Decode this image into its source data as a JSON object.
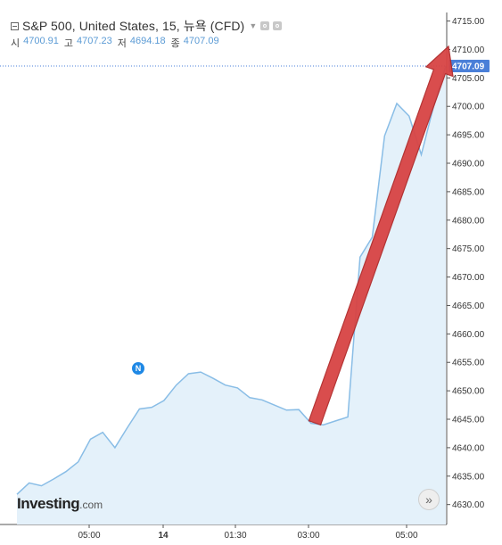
{
  "header": {
    "title": "S&P 500, United States, 15, 뉴욕 (CFD)",
    "ohlc": [
      {
        "label": "시",
        "value": "4700.91"
      },
      {
        "label": "고",
        "value": "4707.23"
      },
      {
        "label": "저",
        "value": "4694.18"
      },
      {
        "label": "종",
        "value": "4707.09"
      }
    ]
  },
  "chart_data": {
    "type": "area",
    "x_ticks": [
      "05:00",
      "14",
      "01:30",
      "03:00",
      "05:00"
    ],
    "y_ticks": [
      "4715.00",
      "4710.00",
      "4705.00",
      "4700.00",
      "4695.00",
      "4690.00",
      "4685.00",
      "4680.00",
      "4675.00",
      "4670.00",
      "4665.00",
      "4660.00",
      "4655.00",
      "4650.00",
      "4645.00",
      "4640.00",
      "4635.00",
      "4630.00"
    ],
    "ylim": [
      4626.5,
      4716.5
    ],
    "values": [
      4631.8,
      4633.8,
      4633.3,
      4634.5,
      4635.8,
      4637.5,
      4641.5,
      4642.7,
      4640.0,
      4643.5,
      4646.8,
      4647.1,
      4648.3,
      4651.0,
      4653.0,
      4653.3,
      4652.2,
      4651.0,
      4650.5,
      4648.8,
      4648.4,
      4647.5,
      4646.6,
      4646.7,
      4644.3,
      4644.0,
      4644.7,
      4645.4,
      4673.5,
      4677.0,
      4694.8,
      4700.5,
      4698.3,
      4691.5,
      4700.0,
      4707.09
    ],
    "last_value_label": "4707.09",
    "colors": {
      "line": "#89bde6",
      "fill": "#e4f1fa",
      "last_price": "#4a7fd8",
      "arrow": "#d84444",
      "arrow_stroke": "#b02a2a"
    }
  },
  "news_badge": "N",
  "logo": {
    "main": "Investing",
    "suffix": ".com"
  },
  "scroll_button": "»"
}
